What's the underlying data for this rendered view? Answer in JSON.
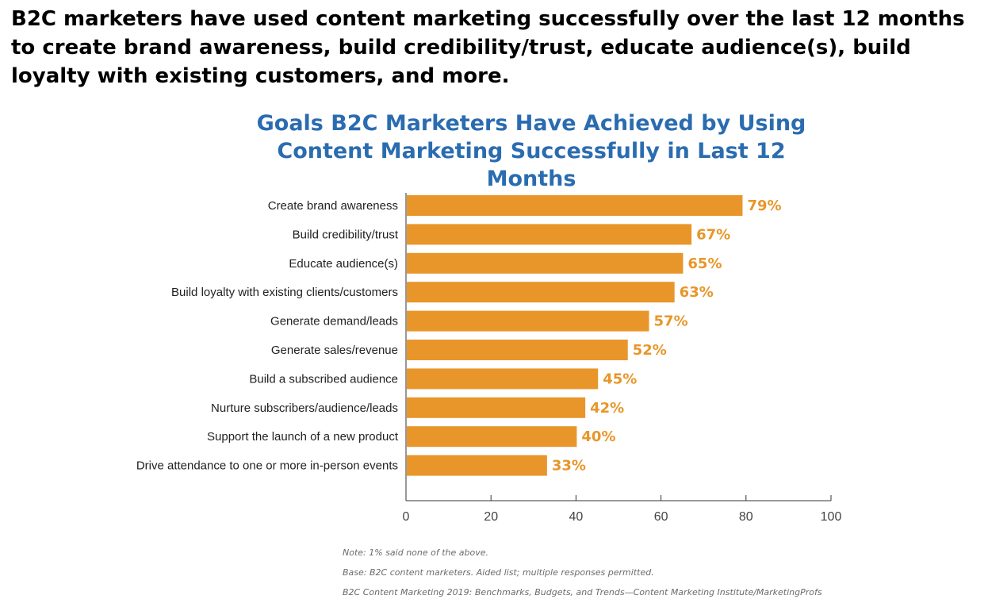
{
  "headline": "B2C marketers have used content marketing successfully over the last 12 months to create brand awareness, build credibility/trust, educate audience(s), build loyalty with existing customers, and more.",
  "chart_data": {
    "type": "bar",
    "orientation": "horizontal",
    "title": "Goals B2C Marketers Have Achieved by Using Content Marketing Successfully in Last 12 Months",
    "title_lines": [
      "Goals B2C Marketers Have Achieved by Using",
      "Content Marketing Successfully in Last 12 Months"
    ],
    "categories": [
      "Create brand awareness",
      "Build credibility/trust",
      "Educate audience(s)",
      "Build loyalty with existing clients/customers",
      "Generate demand/leads",
      "Generate sales/revenue",
      "Build a subscribed audience",
      "Nurture subscribers/audience/leads",
      "Support the launch of a new product",
      "Drive attendance to one or more in-person events"
    ],
    "values": [
      79,
      67,
      65,
      63,
      57,
      52,
      45,
      42,
      40,
      33
    ],
    "value_labels": [
      "79%",
      "67%",
      "65%",
      "63%",
      "57%",
      "52%",
      "45%",
      "42%",
      "40%",
      "33%"
    ],
    "xlim": [
      0,
      100
    ],
    "xticks": [
      "0",
      "20",
      "40",
      "60",
      "80",
      "100"
    ],
    "xlabel": "",
    "ylabel": "",
    "grid": false,
    "legend": "none",
    "bar_color": "#e8962a",
    "label_color": "#e8962a",
    "title_color": "#2b6cb0"
  },
  "notes": [
    "Note: 1% said none of the above.",
    "Base: B2C content marketers. Aided list; multiple responses permitted.",
    "B2C Content Marketing 2019: Benchmarks, Budgets, and Trends—Content Marketing Institute/MarketingProfs"
  ]
}
